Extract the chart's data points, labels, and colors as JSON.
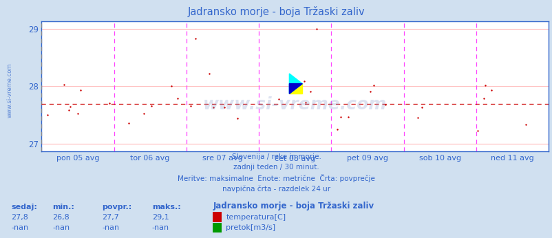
{
  "title": "Jadransko morje - boja Tržaski zaliv",
  "bg_color": "#d0e0f0",
  "plot_bg_color": "#ffffff",
  "text_color": "#3366cc",
  "subtitle_lines": [
    "Slovenija / reke in morje.",
    "zadnji teden / 30 minut.",
    "Meritve: maksimalne  Enote: metrične  Črta: povprečje",
    "navpična črta - razdelek 24 ur"
  ],
  "footer_headers": [
    "sedaj:",
    "min.:",
    "povpr.:",
    "maks.:"
  ],
  "footer_station": "Jadransko morje - boja Tržaski zaliv",
  "footer_rows": [
    [
      "27,8",
      "26,8",
      "27,7",
      "29,1",
      "temperatura[C]"
    ],
    [
      "-nan",
      "-nan",
      "-nan",
      "-nan",
      "pretok[m3/s]"
    ]
  ],
  "legend_colors": [
    "#cc0000",
    "#009900"
  ],
  "ylim": [
    26.875,
    29.125
  ],
  "yticks": [
    27,
    28,
    29
  ],
  "avg_line": 27.7,
  "x_tick_labels": [
    "pon 05 avg",
    "tor 06 avg",
    "sre 07 avg",
    "čet 08 avg",
    "pet 09 avg",
    "sob 10 avg",
    "ned 11 avg"
  ],
  "n_days": 7,
  "watermark_text": "www.si-vreme.com",
  "scatter_color": "#cc0000",
  "vline_color": "#ff44ff",
  "hgrid_color": "#ffbbbb",
  "first_vline_color": "#888888",
  "avg_line_color": "#cc0000",
  "border_color": "#3366cc"
}
